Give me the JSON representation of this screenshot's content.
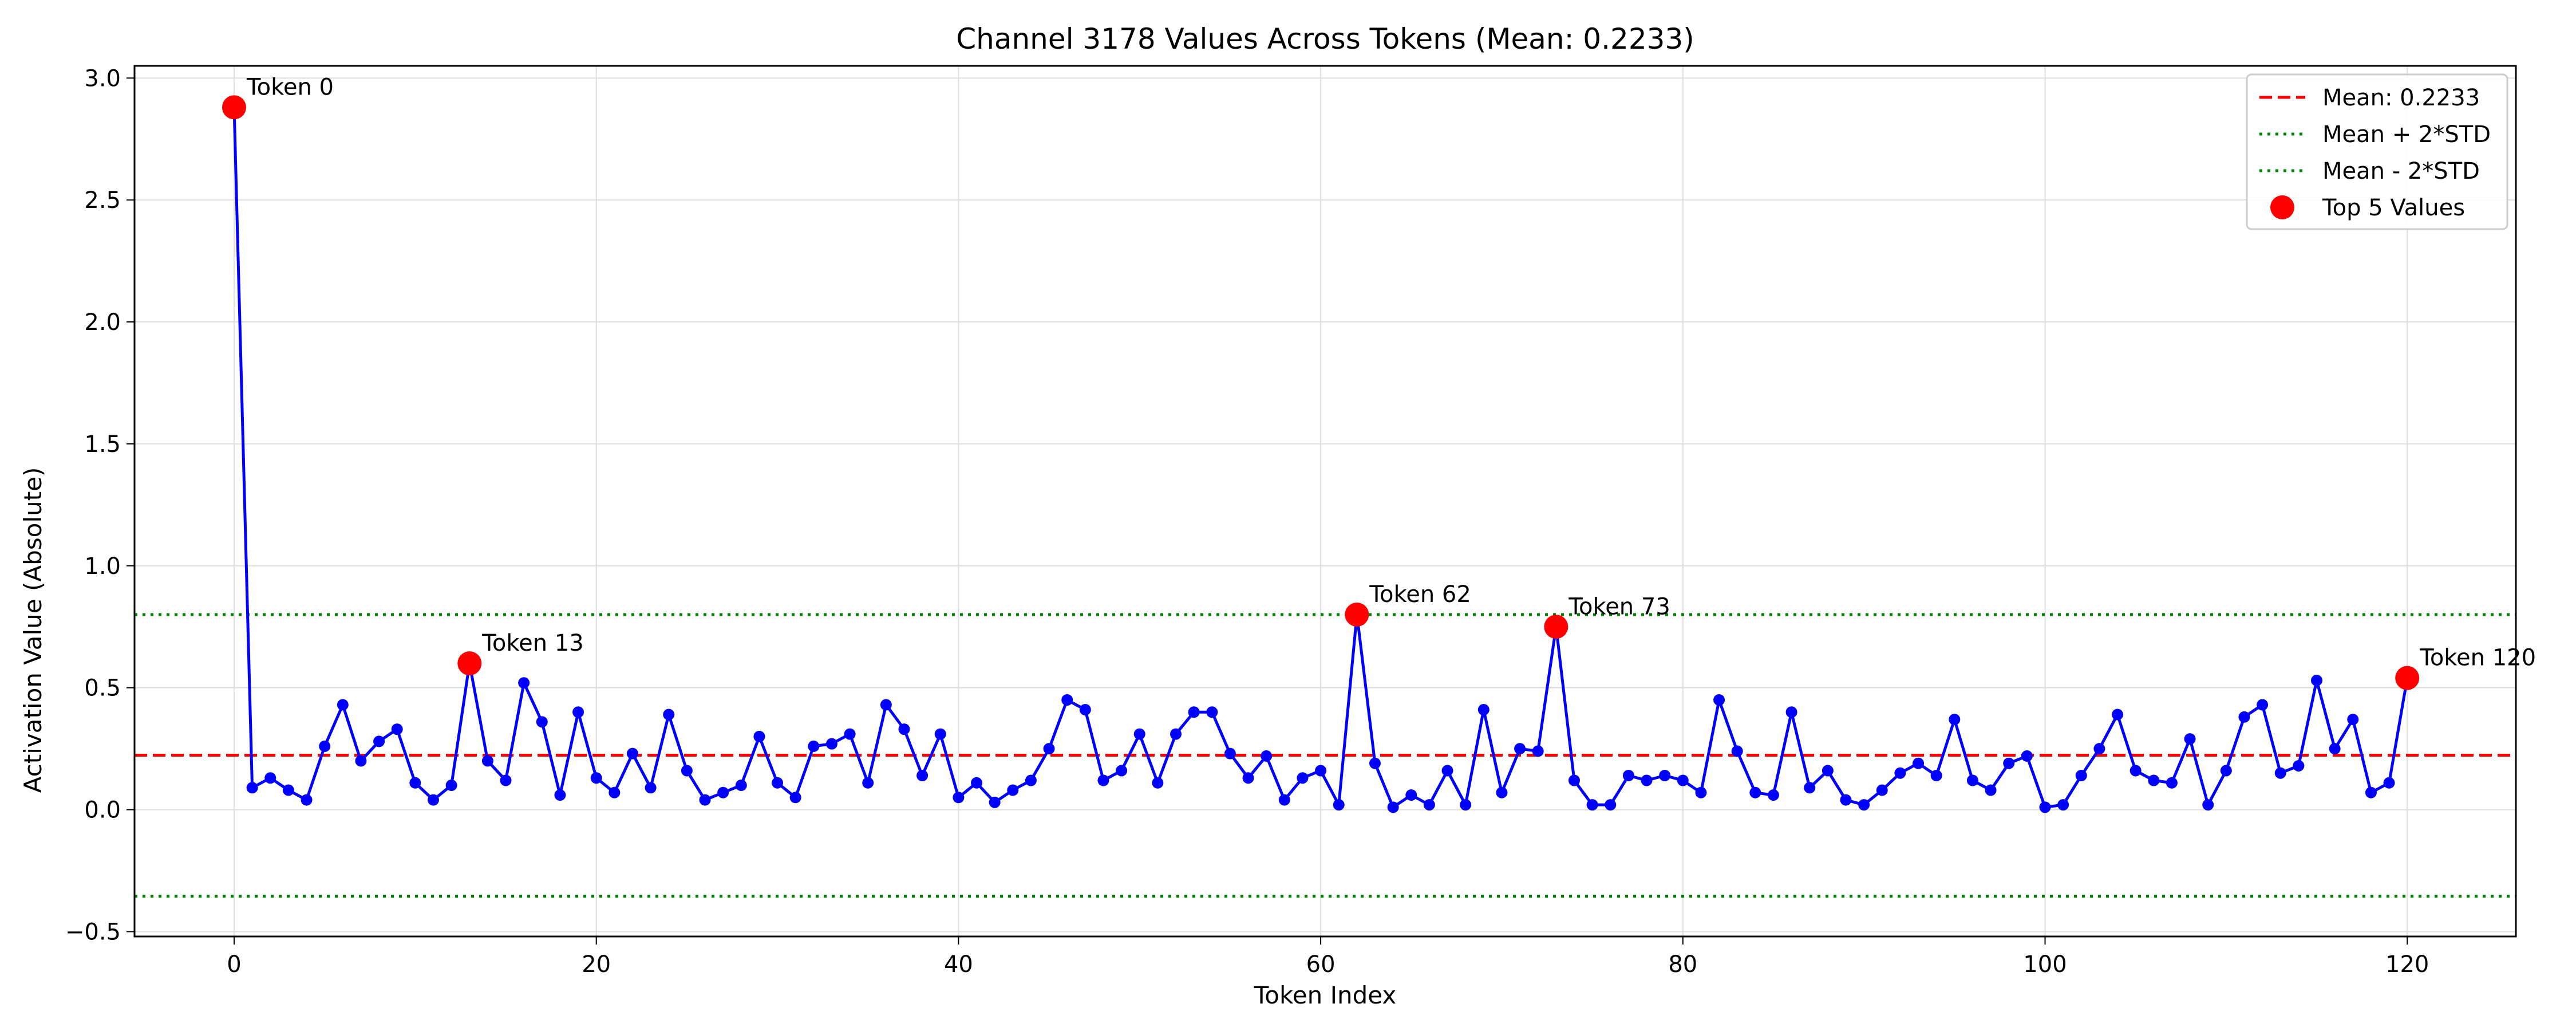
{
  "chart_data": {
    "type": "line",
    "title": "Channel 3178 Values Across Tokens (Mean: 0.2233)",
    "xlabel": "Token Index",
    "ylabel": "Activation Value (Absolute)",
    "xlim": [
      -5.5,
      126
    ],
    "ylim": [
      -0.52,
      3.05
    ],
    "xticks": [
      0,
      20,
      40,
      60,
      80,
      100,
      120
    ],
    "yticks": [
      -0.5,
      0.0,
      0.5,
      1.0,
      1.5,
      2.0,
      2.5,
      3.0
    ],
    "ytick_labels": [
      "−0.5",
      "0.0",
      "0.5",
      "1.0",
      "1.5",
      "2.0",
      "2.5",
      "3.0"
    ],
    "grid": true,
    "legend_position": "top-right",
    "colors": {
      "series": "#0000ff",
      "mean": "#ff0000",
      "std": "#008000",
      "top": "#ff0000"
    },
    "mean": 0.2233,
    "upper_band": 0.8,
    "lower_band": -0.355,
    "series": [
      {
        "name": "",
        "values": [
          2.88,
          0.09,
          0.13,
          0.08,
          0.04,
          0.26,
          0.43,
          0.2,
          0.28,
          0.33,
          0.11,
          0.04,
          0.1,
          0.6,
          0.2,
          0.12,
          0.52,
          0.36,
          0.06,
          0.4,
          0.13,
          0.07,
          0.23,
          0.09,
          0.39,
          0.16,
          0.04,
          0.07,
          0.1,
          0.3,
          0.11,
          0.05,
          0.26,
          0.27,
          0.31,
          0.11,
          0.43,
          0.33,
          0.14,
          0.31,
          0.05,
          0.11,
          0.03,
          0.08,
          0.12,
          0.25,
          0.45,
          0.41,
          0.12,
          0.16,
          0.31,
          0.11,
          0.31,
          0.4,
          0.4,
          0.23,
          0.13,
          0.22,
          0.04,
          0.13,
          0.16,
          0.02,
          0.8,
          0.19,
          0.01,
          0.06,
          0.02,
          0.16,
          0.02,
          0.41,
          0.07,
          0.25,
          0.24,
          0.75,
          0.12,
          0.02,
          0.02,
          0.14,
          0.12,
          0.14,
          0.12,
          0.07,
          0.45,
          0.24,
          0.07,
          0.06,
          0.4,
          0.09,
          0.16,
          0.04,
          0.02,
          0.08,
          0.15,
          0.19,
          0.14,
          0.37,
          0.12,
          0.08,
          0.19,
          0.22,
          0.01,
          0.02,
          0.14,
          0.25,
          0.39,
          0.16,
          0.12,
          0.11,
          0.29,
          0.02,
          0.16,
          0.38,
          0.43,
          0.15,
          0.18,
          0.53,
          0.25,
          0.37,
          0.07,
          0.11,
          0.54
        ]
      }
    ],
    "top_points": [
      {
        "x": 0,
        "y": 2.88,
        "label": "Token 0"
      },
      {
        "x": 13,
        "y": 0.6,
        "label": "Token 13"
      },
      {
        "x": 62,
        "y": 0.8,
        "label": "Token 62"
      },
      {
        "x": 73,
        "y": 0.75,
        "label": "Token 73"
      },
      {
        "x": 120,
        "y": 0.54,
        "label": "Token 120"
      }
    ],
    "legend": [
      {
        "label": "Mean: 0.2233",
        "style": "dashed",
        "color": "#ff0000"
      },
      {
        "label": "Mean + 2*STD",
        "style": "dotted",
        "color": "#008000"
      },
      {
        "label": "Mean - 2*STD",
        "style": "dotted",
        "color": "#008000"
      },
      {
        "label": "Top 5 Values",
        "style": "marker",
        "color": "#ff0000"
      }
    ]
  }
}
